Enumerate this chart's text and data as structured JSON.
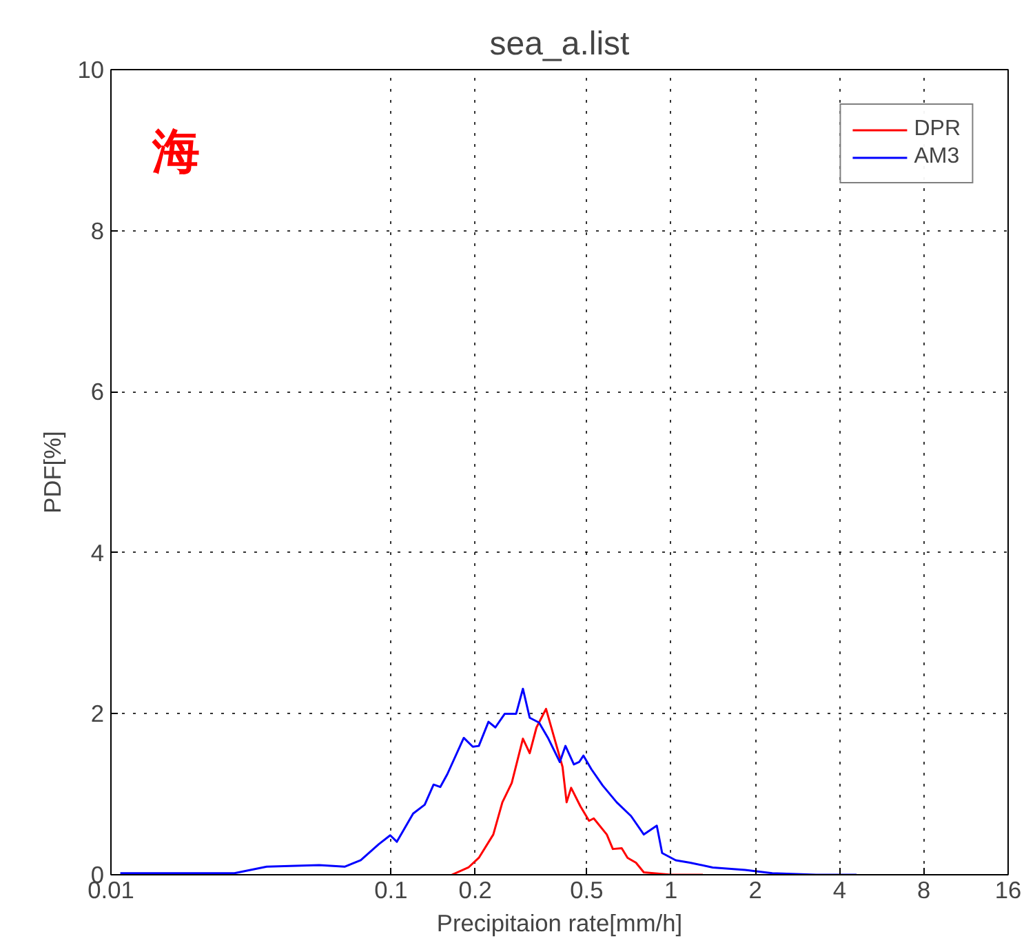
{
  "chart_data": {
    "type": "line",
    "title": "sea_a.list",
    "xlabel": "Precipitaion rate[mm/h]",
    "ylabel": "PDF[%]",
    "annotations": [
      "海"
    ],
    "series": [
      {
        "name": "DPR",
        "color": "#ff0000",
        "x": [
          0.165,
          0.189,
          0.206,
          0.232,
          0.25,
          0.27,
          0.296,
          0.313,
          0.331,
          0.358,
          0.386,
          0.41,
          0.424,
          0.44,
          0.475,
          0.51,
          0.53,
          0.59,
          0.62,
          0.667,
          0.7,
          0.75,
          0.8,
          1.0,
          1.3
        ],
        "values": [
          0,
          0.09,
          0.21,
          0.5,
          0.9,
          1.14,
          1.69,
          1.51,
          1.83,
          2.06,
          1.66,
          1.34,
          0.9,
          1.08,
          0.85,
          0.67,
          0.7,
          0.5,
          0.32,
          0.33,
          0.21,
          0.15,
          0.03,
          0,
          0
        ]
      },
      {
        "name": "AM3",
        "color": "#0000ff",
        "x": [
          0.0108,
          0.0276,
          0.036,
          0.0554,
          0.0683,
          0.078,
          0.0905,
          0.0994,
          0.105,
          0.12,
          0.132,
          0.142,
          0.15,
          0.159,
          0.182,
          0.196,
          0.206,
          0.223,
          0.236,
          0.255,
          0.28,
          0.296,
          0.313,
          0.338,
          0.365,
          0.401,
          0.42,
          0.45,
          0.47,
          0.487,
          0.52,
          0.57,
          0.64,
          0.72,
          0.8,
          0.89,
          0.93,
          1.04,
          1.17,
          1.41,
          1.84,
          2.3,
          3.3,
          4.6
        ],
        "values": [
          0.02,
          0.02,
          0.1,
          0.12,
          0.1,
          0.18,
          0.38,
          0.49,
          0.41,
          0.76,
          0.87,
          1.12,
          1.09,
          1.25,
          1.7,
          1.59,
          1.6,
          1.9,
          1.83,
          2.0,
          2.0,
          2.31,
          1.95,
          1.89,
          1.69,
          1.4,
          1.6,
          1.37,
          1.4,
          1.48,
          1.31,
          1.11,
          0.9,
          0.73,
          0.5,
          0.61,
          0.27,
          0.18,
          0.15,
          0.09,
          0.06,
          0.02,
          0,
          0
        ]
      }
    ],
    "log": "x",
    "xlim": [
      0.01,
      16
    ],
    "xticks": [
      0.01,
      0.1,
      0.2,
      0.5,
      1,
      2,
      4,
      8,
      16
    ],
    "ylim": [
      0,
      10
    ],
    "yticks": [
      0,
      2,
      4,
      6,
      8,
      10
    ],
    "grid": true,
    "legend": "top right",
    "marker": "none",
    "line_style": "solid"
  }
}
